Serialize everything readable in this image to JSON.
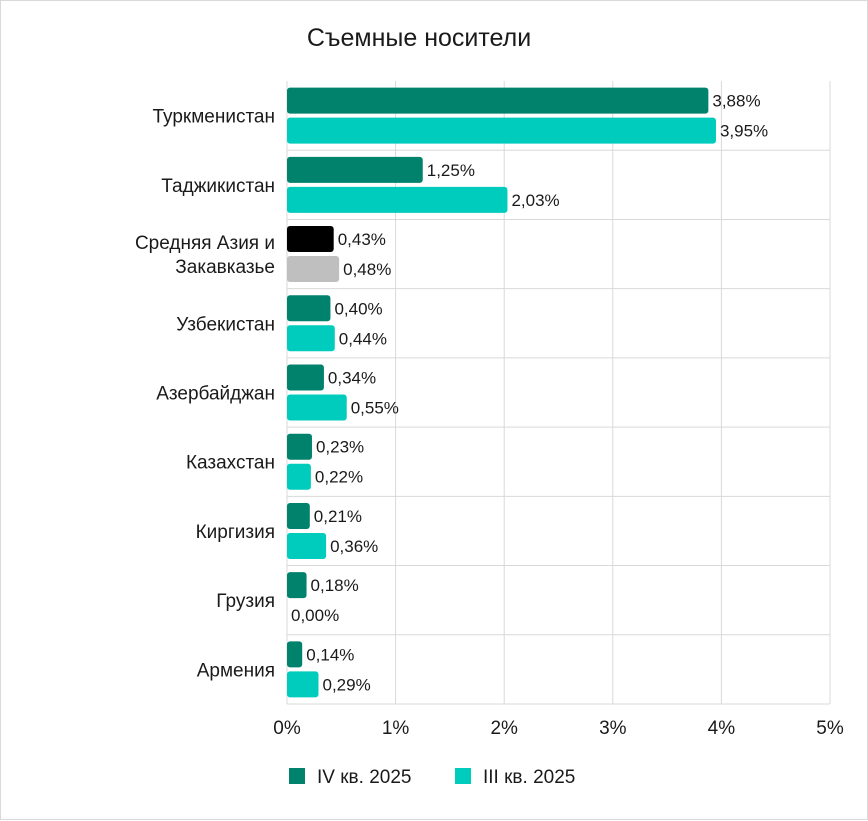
{
  "chart_data": {
    "type": "bar",
    "orientation": "horizontal",
    "title": "Съемные носители",
    "xlabel": "",
    "ylabel": "",
    "xlim": [
      0,
      5
    ],
    "x_ticks": [
      "0%",
      "1%",
      "2%",
      "3%",
      "4%",
      "5%"
    ],
    "grid": true,
    "legend_position": "bottom",
    "categories": [
      "Туркменистан",
      "Таджикистан",
      "Средняя Азия и Закавказье",
      "Узбекистан",
      "Азербайджан",
      "Казахстан",
      "Киргизия",
      "Грузия",
      "Армения"
    ],
    "category_lines": [
      [
        "Туркменистан"
      ],
      [
        "Таджикистан"
      ],
      [
        "Средняя Азия и",
        "Закавказье"
      ],
      [
        "Узбекистан"
      ],
      [
        "Азербайджан"
      ],
      [
        "Казахстан"
      ],
      [
        "Киргизия"
      ],
      [
        "Грузия"
      ],
      [
        "Армения"
      ]
    ],
    "series": [
      {
        "name": "IV кв. 2025",
        "color": "#00826c",
        "values": [
          3.88,
          1.25,
          0.43,
          0.4,
          0.34,
          0.23,
          0.21,
          0.18,
          0.14
        ],
        "labels": [
          "3,88%",
          "1,25%",
          "0,43%",
          "0,40%",
          "0,34%",
          "0,23%",
          "0,21%",
          "0,18%",
          "0,14%"
        ]
      },
      {
        "name": "III кв. 2025",
        "color": "#00ccbe",
        "values": [
          3.95,
          2.03,
          0.48,
          0.44,
          0.55,
          0.22,
          0.36,
          0.0,
          0.29
        ],
        "labels": [
          "3,95%",
          "2,03%",
          "0,48%",
          "0,44%",
          "0,55%",
          "0,22%",
          "0,36%",
          "0,00%",
          "0,29%"
        ]
      }
    ],
    "highlight": {
      "category_index": 2,
      "colors": [
        "#000000",
        "#bfbfbf"
      ]
    }
  }
}
